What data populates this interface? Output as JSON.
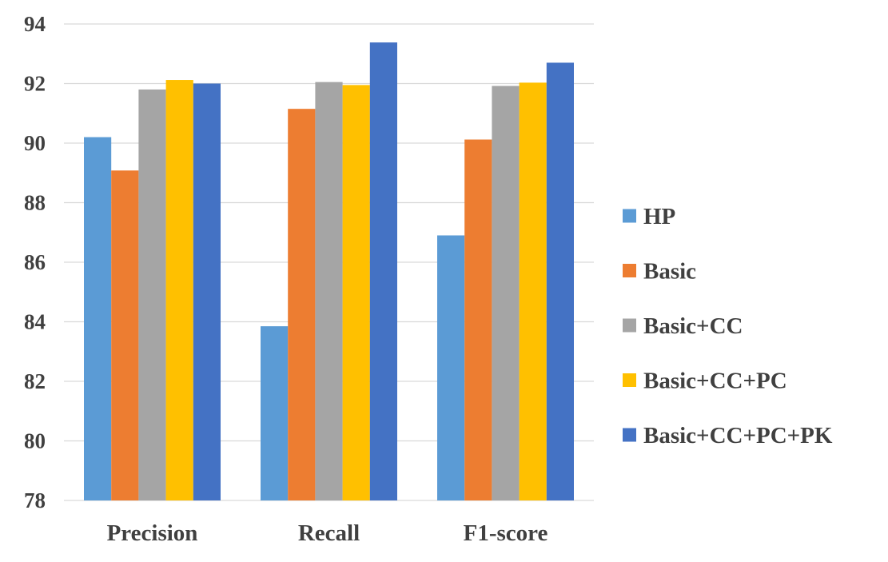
{
  "chart_data": {
    "type": "bar",
    "title": "",
    "xlabel": "",
    "ylabel": "",
    "categories": [
      "Precision",
      "Recall",
      "F1-score"
    ],
    "ylim": [
      78,
      94
    ],
    "yticks": [
      "78",
      "80",
      "82",
      "84",
      "86",
      "88",
      "90",
      "92",
      "94"
    ],
    "grid": true,
    "legend_position": "right",
    "series": [
      {
        "name": "HP",
        "color": "#5B9BD5",
        "values": [
          90.2,
          83.85,
          86.9
        ]
      },
      {
        "name": "Basic",
        "color": "#ED7D31",
        "values": [
          89.08,
          91.15,
          90.12
        ]
      },
      {
        "name": "Basic+CC",
        "color": "#A5A5A5",
        "values": [
          91.8,
          92.05,
          91.92
        ]
      },
      {
        "name": "Basic+CC+PC",
        "color": "#FFC000",
        "values": [
          92.12,
          91.95,
          92.03
        ]
      },
      {
        "name": "Basic+CC+PC+PK",
        "color": "#4472C4",
        "values": [
          92.0,
          93.38,
          92.7
        ]
      }
    ]
  }
}
